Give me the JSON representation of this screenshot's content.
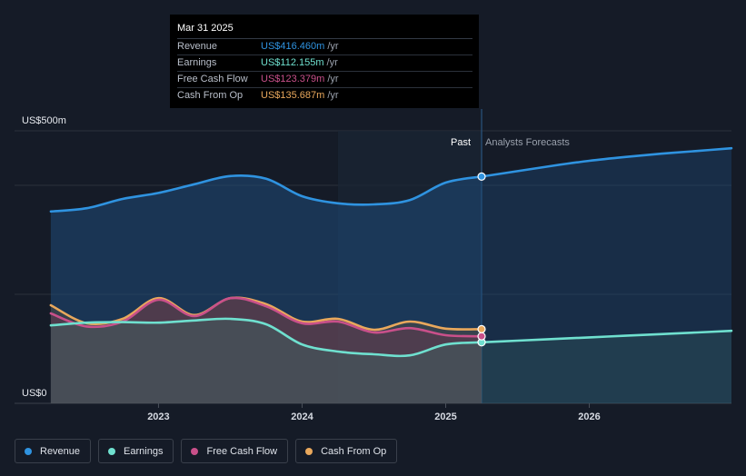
{
  "colors": {
    "revenue": "#2f93e0",
    "earnings": "#6fe0cf",
    "free_cash_flow": "#c9508a",
    "cash_from_op": "#e9a85c"
  },
  "tooltip": {
    "date": "Mar 31 2025",
    "rows": [
      {
        "label": "Revenue",
        "value": "US$416.460m",
        "unit": "/yr",
        "color": "#2f93e0"
      },
      {
        "label": "Earnings",
        "value": "US$112.155m",
        "unit": "/yr",
        "color": "#6fe0cf"
      },
      {
        "label": "Free Cash Flow",
        "value": "US$123.379m",
        "unit": "/yr",
        "color": "#c9508a"
      },
      {
        "label": "Cash From Op",
        "value": "US$135.687m",
        "unit": "/yr",
        "color": "#e9a85c"
      }
    ]
  },
  "legend": [
    {
      "label": "Revenue",
      "color": "#2f93e0"
    },
    {
      "label": "Earnings",
      "color": "#6fe0cf"
    },
    {
      "label": "Free Cash Flow",
      "color": "#c9508a"
    },
    {
      "label": "Cash From Op",
      "color": "#e9a85c"
    }
  ],
  "chart_data": {
    "type": "line",
    "title": "",
    "ylabel_top": "US$500m",
    "ylabel_bottom": "US$0",
    "ylim": [
      0,
      500
    ],
    "xlim": [
      2022.2,
      2026.99
    ],
    "x_ticks": [
      2023,
      2024,
      2025,
      2026
    ],
    "x_tick_labels": [
      "2023",
      "2024",
      "2025",
      "2026"
    ],
    "past_label": "Past",
    "forecast_label": "Analysts Forecasts",
    "past_region_start": 2024.25,
    "forecast_start": 2025.25,
    "series": [
      {
        "name": "Revenue",
        "key": "revenue",
        "color": "#2f93e0",
        "x": [
          2022.25,
          2022.5,
          2022.75,
          2023.0,
          2023.25,
          2023.5,
          2023.75,
          2024.0,
          2024.25,
          2024.5,
          2024.75,
          2025.0,
          2025.25
        ],
        "y": [
          352,
          358,
          375,
          386,
          402,
          417,
          412,
          380,
          367,
          365,
          373,
          405,
          416
        ]
      },
      {
        "name": "Revenue forecast",
        "key": "revenue",
        "color": "#2f93e0",
        "forecast": true,
        "x": [
          2025.25,
          2025.5,
          2025.75,
          2026.0,
          2026.25,
          2026.5,
          2026.75,
          2026.99
        ],
        "y": [
          416,
          426,
          436,
          445,
          452,
          458,
          463,
          468
        ]
      },
      {
        "name": "Earnings",
        "key": "earnings",
        "color": "#6fe0cf",
        "x": [
          2022.25,
          2022.5,
          2022.75,
          2023.0,
          2023.25,
          2023.5,
          2023.75,
          2024.0,
          2024.25,
          2024.5,
          2024.75,
          2025.0,
          2025.25
        ],
        "y": [
          143,
          148,
          149,
          148,
          152,
          155,
          145,
          108,
          95,
          90,
          88,
          108,
          112
        ]
      },
      {
        "name": "Earnings forecast",
        "key": "earnings",
        "color": "#6fe0cf",
        "forecast": true,
        "x": [
          2025.25,
          2025.5,
          2025.75,
          2026.0,
          2026.25,
          2026.5,
          2026.75,
          2026.99
        ],
        "y": [
          112,
          115,
          118,
          121,
          124,
          127,
          130,
          133
        ]
      },
      {
        "name": "Free Cash Flow",
        "key": "free_cash_flow",
        "color": "#c9508a",
        "x": [
          2022.25,
          2022.5,
          2022.75,
          2023.0,
          2023.25,
          2023.5,
          2023.75,
          2024.0,
          2024.25,
          2024.5,
          2024.75,
          2025.0,
          2025.25
        ],
        "y": [
          165,
          141,
          150,
          190,
          160,
          193,
          178,
          147,
          150,
          130,
          138,
          125,
          123
        ]
      },
      {
        "name": "Cash From Op",
        "key": "cash_from_op",
        "color": "#e9a85c",
        "x": [
          2022.25,
          2022.5,
          2022.75,
          2023.0,
          2023.25,
          2023.5,
          2023.75,
          2024.0,
          2024.25,
          2024.5,
          2024.75,
          2025.0,
          2025.25
        ],
        "y": [
          180,
          147,
          155,
          193,
          162,
          193,
          182,
          150,
          155,
          135,
          150,
          137,
          136
        ]
      }
    ],
    "highlight_x": 2025.25
  }
}
